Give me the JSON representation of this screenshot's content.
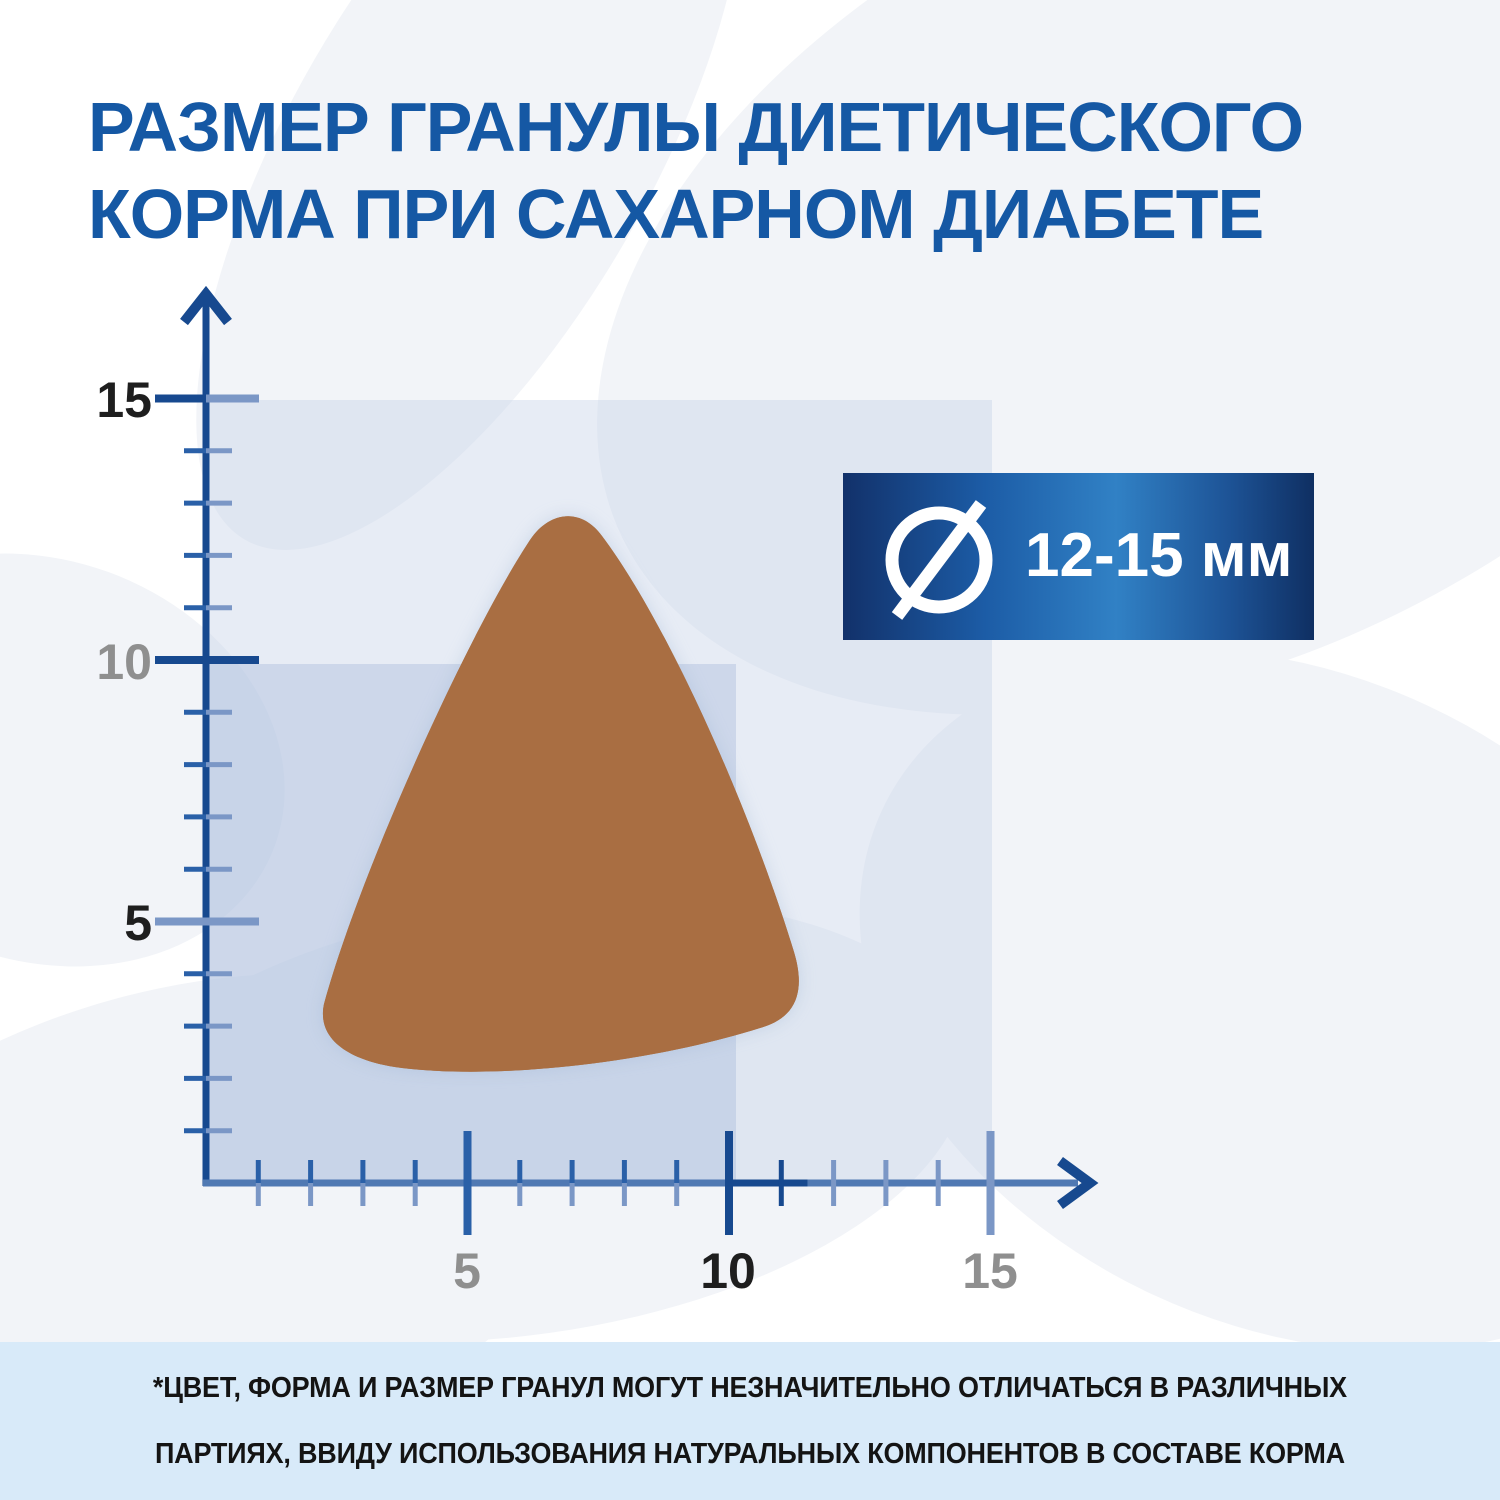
{
  "title": {
    "line1": "РАЗМЕР ГРАНУЛЫ ДИЕТИЧЕСКОГО",
    "line2": "КОРМА ПРИ САХАРНОМ ДИАБЕТЕ"
  },
  "badge": {
    "icon": "diameter-icon",
    "label": "12-15 мм"
  },
  "footnote": {
    "line1": "*ЦВЕТ, ФОРМА И РАЗМЕР ГРАНУЛ МОГУТ НЕЗНАЧИТЕЛЬНО ОТЛИЧАТЬСЯ  В РАЗЛИЧНЫХ",
    "line2": "ПАРТИЯХ, ВВИДУ ИСПОЛЬЗОВАНИЯ НАТУРАЛЬНЫХ КОМПОНЕНТОВ В СОСТАВЕ  КОРМА"
  },
  "chart_data": {
    "type": "size-ruler-diagram",
    "unit": "мм",
    "x_axis": {
      "min": 0,
      "max": 17,
      "tick_step": 1,
      "major_tick_step": 5,
      "labels": {
        "5": "5",
        "10": "10",
        "15": "15"
      },
      "emphasized_labels": [
        "10"
      ],
      "highlight_segment_mm": [
        10,
        11.5
      ]
    },
    "y_axis": {
      "min": 0,
      "max": 17,
      "tick_step": 1,
      "major_tick_step": 5,
      "labels": {
        "5": "5",
        "10": "10",
        "15": "15"
      },
      "emphasized_labels": [
        "15",
        "5"
      ]
    },
    "granule": {
      "shape": "rounded-triangle kibble",
      "approx_width_mm": 10.5,
      "approx_height_mm": 11,
      "diameter_range": "12-15 мм"
    }
  },
  "palette": {
    "title_blue": "#1558a4",
    "axis_dark": "#17498f",
    "axis_steel": "#5079b3",
    "tick_dark": "#2a60a8",
    "tick_steel": "#7b97c6",
    "label_black": "#1e1e1e",
    "label_gray": "#8f8f8f",
    "field_tint": "#dce3ef",
    "field_tint_deep": "#c9d5e8",
    "badge_dark": "#12316a",
    "badge_light": "#3181c5",
    "footer_bg": "#d8eaf9",
    "kibble_base": "#a96e42",
    "kibble_dark_speckle": "#6b3e24",
    "kibble_light_speckle": "#e0a96b"
  }
}
